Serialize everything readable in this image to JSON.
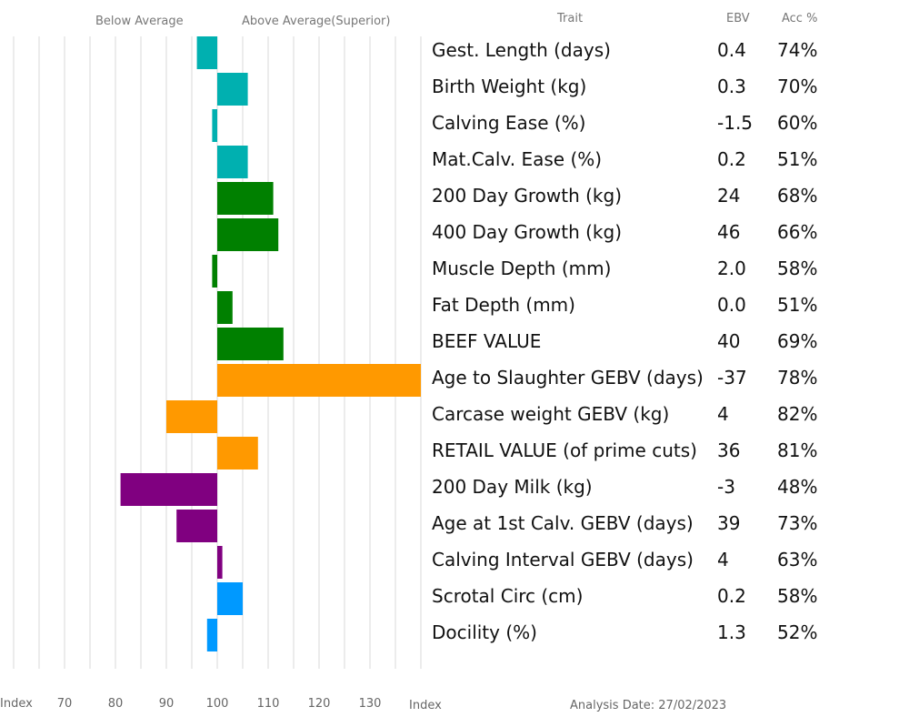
{
  "chart_data": {
    "type": "bar",
    "orientation": "horizontal",
    "headers": {
      "below": "Below Average",
      "above": "Above Average(Superior)",
      "trait": "Trait",
      "ebv": "EBV",
      "acc": "Acc %"
    },
    "x_axis": {
      "label_left": "Index",
      "label_right": "Index",
      "ticks": [
        "70",
        "80",
        "90",
        "100",
        "110",
        "120",
        "130"
      ],
      "range": [
        60,
        140
      ],
      "baseline": 100,
      "grid": true
    },
    "analysis_date": "Analysis Date: 27/02/2023",
    "rows": [
      {
        "trait": "Gest. Length (days)",
        "ebv": "0.4",
        "acc": "74%",
        "index": 96,
        "color": "#00b0b0"
      },
      {
        "trait": "Birth Weight (kg)",
        "ebv": "0.3",
        "acc": "70%",
        "index": 106,
        "color": "#00b0b0"
      },
      {
        "trait": "Calving Ease (%)",
        "ebv": "-1.5",
        "acc": "60%",
        "index": 99,
        "color": "#00b0b0"
      },
      {
        "trait": "Mat.Calv. Ease (%)",
        "ebv": "0.2",
        "acc": "51%",
        "index": 106,
        "color": "#00b0b0"
      },
      {
        "trait": "200 Day Growth (kg)",
        "ebv": "24",
        "acc": "68%",
        "index": 111,
        "color": "#008000"
      },
      {
        "trait": "400 Day Growth (kg)",
        "ebv": "46",
        "acc": "66%",
        "index": 112,
        "color": "#008000"
      },
      {
        "trait": "Muscle Depth (mm)",
        "ebv": "2.0",
        "acc": "58%",
        "index": 99,
        "color": "#008000"
      },
      {
        "trait": "Fat Depth (mm)",
        "ebv": "0.0",
        "acc": "51%",
        "index": 103,
        "color": "#008000"
      },
      {
        "trait": "BEEF VALUE",
        "ebv": "40",
        "acc": "69%",
        "index": 113,
        "color": "#008000"
      },
      {
        "trait": "Age to Slaughter GEBV (days)",
        "ebv": "-37",
        "acc": "78%",
        "index": 140,
        "color": "#ff9900"
      },
      {
        "trait": "Carcase weight GEBV (kg)",
        "ebv": "4",
        "acc": "82%",
        "index": 90,
        "color": "#ff9900"
      },
      {
        "trait": "RETAIL VALUE (of prime cuts)",
        "ebv": "36",
        "acc": "81%",
        "index": 108,
        "color": "#ff9900"
      },
      {
        "trait": "200 Day Milk (kg)",
        "ebv": "-3",
        "acc": "48%",
        "index": 81,
        "color": "#800080"
      },
      {
        "trait": "Age at 1st Calv. GEBV (days)",
        "ebv": "39",
        "acc": "73%",
        "index": 92,
        "color": "#800080"
      },
      {
        "trait": "Calving Interval GEBV (days)",
        "ebv": "4",
        "acc": "63%",
        "index": 101,
        "color": "#800080"
      },
      {
        "trait": "Scrotal Circ (cm)",
        "ebv": "0.2",
        "acc": "58%",
        "index": 105,
        "color": "#0099ff"
      },
      {
        "trait": "Docility (%)",
        "ebv": "1.3",
        "acc": "52%",
        "index": 98,
        "color": "#0099ff"
      }
    ]
  }
}
